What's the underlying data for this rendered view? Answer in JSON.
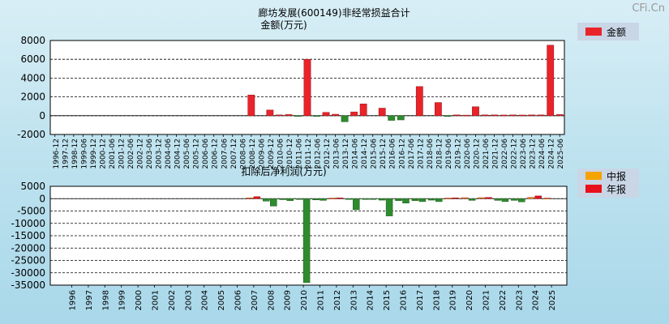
{
  "watermark": "CFi.Cn",
  "colors": {
    "positive": "#e8242a",
    "negative": "#2e8b2e",
    "interim": "#f5a300",
    "annual": "#e8101a",
    "plot_bg": "#ffffff",
    "legend_bg": "#c9d6e6"
  },
  "chart_data": [
    {
      "type": "bar",
      "title": "廊坊发展(600149)非经常损益合计",
      "subtitle": "金额(万元)",
      "legend": [
        {
          "name": "金额",
          "color": "#e8242a"
        }
      ],
      "legend_position": "right",
      "grid": true,
      "ylim": [
        -2000,
        8000
      ],
      "yticks": [
        "8000",
        "6000",
        "4000",
        "2000",
        "0",
        "-2000"
      ],
      "ytick_values": [
        8000,
        6000,
        4000,
        2000,
        0,
        -2000
      ],
      "categories": [
        "1996-12",
        "1997-12",
        "1998-12",
        "1999-06",
        "1999-12",
        "2000-12",
        "2001-06",
        "2001-12",
        "2002-06",
        "2002-12",
        "2003-06",
        "2003-12",
        "2004-06",
        "2004-12",
        "2005-06",
        "2005-12",
        "2006-06",
        "2006-12",
        "2007-06",
        "2007-12",
        "2008-06",
        "2008-12",
        "2009-06",
        "2009-12",
        "2010-06",
        "2010-12",
        "2011-06",
        "2011-12",
        "2012-06",
        "2012-12",
        "2013-06",
        "2013-12",
        "2014-06",
        "2014-12",
        "2015-06",
        "2015-12",
        "2016-06",
        "2016-12",
        "2017-06",
        "2017-12",
        "2018-06",
        "2018-12",
        "2019-06",
        "2019-12",
        "2020-06",
        "2020-12",
        "2021-06",
        "2021-12",
        "2022-06",
        "2022-12",
        "2023-06",
        "2023-12",
        "2024-06",
        "2024-12",
        "2025-06"
      ],
      "values": [
        0,
        0,
        0,
        0,
        0,
        0,
        0,
        0,
        0,
        0,
        0,
        0,
        0,
        0,
        0,
        0,
        0,
        0,
        0,
        0,
        0,
        2200,
        0,
        600,
        80,
        120,
        -80,
        6000,
        -80,
        350,
        150,
        -650,
        400,
        1250,
        0,
        800,
        -500,
        -450,
        0,
        3100,
        0,
        1400,
        -80,
        80,
        60,
        950,
        80,
        80,
        70,
        80,
        70,
        80,
        80,
        7500,
        120
      ]
    },
    {
      "type": "bar",
      "title": "扣除后净利润(万元)",
      "legend": [
        {
          "name": "中报",
          "color": "#f5a300"
        },
        {
          "name": "年报",
          "color": "#e8101a"
        }
      ],
      "legend_position": "right",
      "grid": true,
      "ylim": [
        -35000,
        5000
      ],
      "yticks": [
        "5000",
        "0",
        "-5000",
        "-10000",
        "-15000",
        "-20000",
        "-25000",
        "-30000",
        "-35000"
      ],
      "ytick_values": [
        5000,
        0,
        -5000,
        -10000,
        -15000,
        -20000,
        -25000,
        -30000,
        -35000
      ],
      "categories": [
        "1996",
        "1997",
        "1998",
        "1999",
        "2000",
        "2001",
        "2002",
        "2003",
        "2004",
        "2005",
        "2006",
        "2007",
        "2008",
        "2009",
        "2010",
        "2011",
        "2012",
        "2013",
        "2014",
        "2015",
        "2016",
        "2017",
        "2018",
        "2019",
        "2020",
        "2021",
        "2022",
        "2023",
        "2024",
        "2025"
      ],
      "series": [
        {
          "name": "中报",
          "values": [
            0,
            0,
            0,
            0,
            0,
            0,
            0,
            0,
            0,
            0,
            0,
            300,
            -1000,
            -400,
            -300,
            -500,
            200,
            -300,
            -300,
            -600,
            -800,
            -800,
            -600,
            200,
            400,
            400,
            -700,
            -700,
            500,
            200
          ]
        },
        {
          "name": "年报",
          "values": [
            0,
            0,
            0,
            0,
            0,
            0,
            0,
            0,
            0,
            0,
            0,
            800,
            -3000,
            -800,
            -34000,
            -700,
            300,
            -4500,
            -300,
            -7000,
            -1800,
            -1200,
            -1200,
            300,
            -700,
            500,
            -1200,
            -1300,
            1100,
            null
          ]
        }
      ]
    }
  ]
}
